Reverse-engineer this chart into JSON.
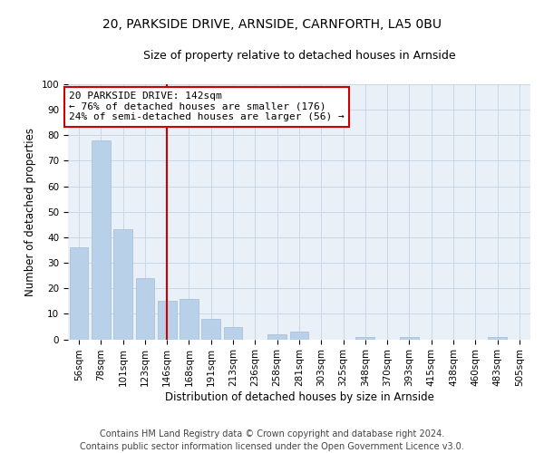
{
  "title1": "20, PARKSIDE DRIVE, ARNSIDE, CARNFORTH, LA5 0BU",
  "title2": "Size of property relative to detached houses in Arnside",
  "xlabel": "Distribution of detached houses by size in Arnside",
  "ylabel": "Number of detached properties",
  "categories": [
    "56sqm",
    "78sqm",
    "101sqm",
    "123sqm",
    "146sqm",
    "168sqm",
    "191sqm",
    "213sqm",
    "236sqm",
    "258sqm",
    "281sqm",
    "303sqm",
    "325sqm",
    "348sqm",
    "370sqm",
    "393sqm",
    "415sqm",
    "438sqm",
    "460sqm",
    "483sqm",
    "505sqm"
  ],
  "values": [
    36,
    78,
    43,
    24,
    15,
    16,
    8,
    5,
    0,
    2,
    3,
    0,
    0,
    1,
    0,
    1,
    0,
    0,
    0,
    1,
    0
  ],
  "bar_color": "#b8d0e8",
  "bar_edge_color": "#a0bcd8",
  "vline_x": 4.0,
  "vline_color": "#cc0000",
  "annotation_text": "20 PARKSIDE DRIVE: 142sqm\n← 76% of detached houses are smaller (176)\n24% of semi-detached houses are larger (56) →",
  "annotation_box_color": "#ffffff",
  "annotation_box_edge_color": "#cc0000",
  "ylim": [
    0,
    100
  ],
  "yticks": [
    0,
    10,
    20,
    30,
    40,
    50,
    60,
    70,
    80,
    90,
    100
  ],
  "grid_color": "#c8d8e8",
  "bg_color": "#eaf0f8",
  "footnote": "Contains HM Land Registry data © Crown copyright and database right 2024.\nContains public sector information licensed under the Open Government Licence v3.0.",
  "title1_fontsize": 10,
  "title2_fontsize": 9,
  "xlabel_fontsize": 8.5,
  "ylabel_fontsize": 8.5,
  "tick_fontsize": 7.5,
  "annotation_fontsize": 8,
  "footnote_fontsize": 7
}
